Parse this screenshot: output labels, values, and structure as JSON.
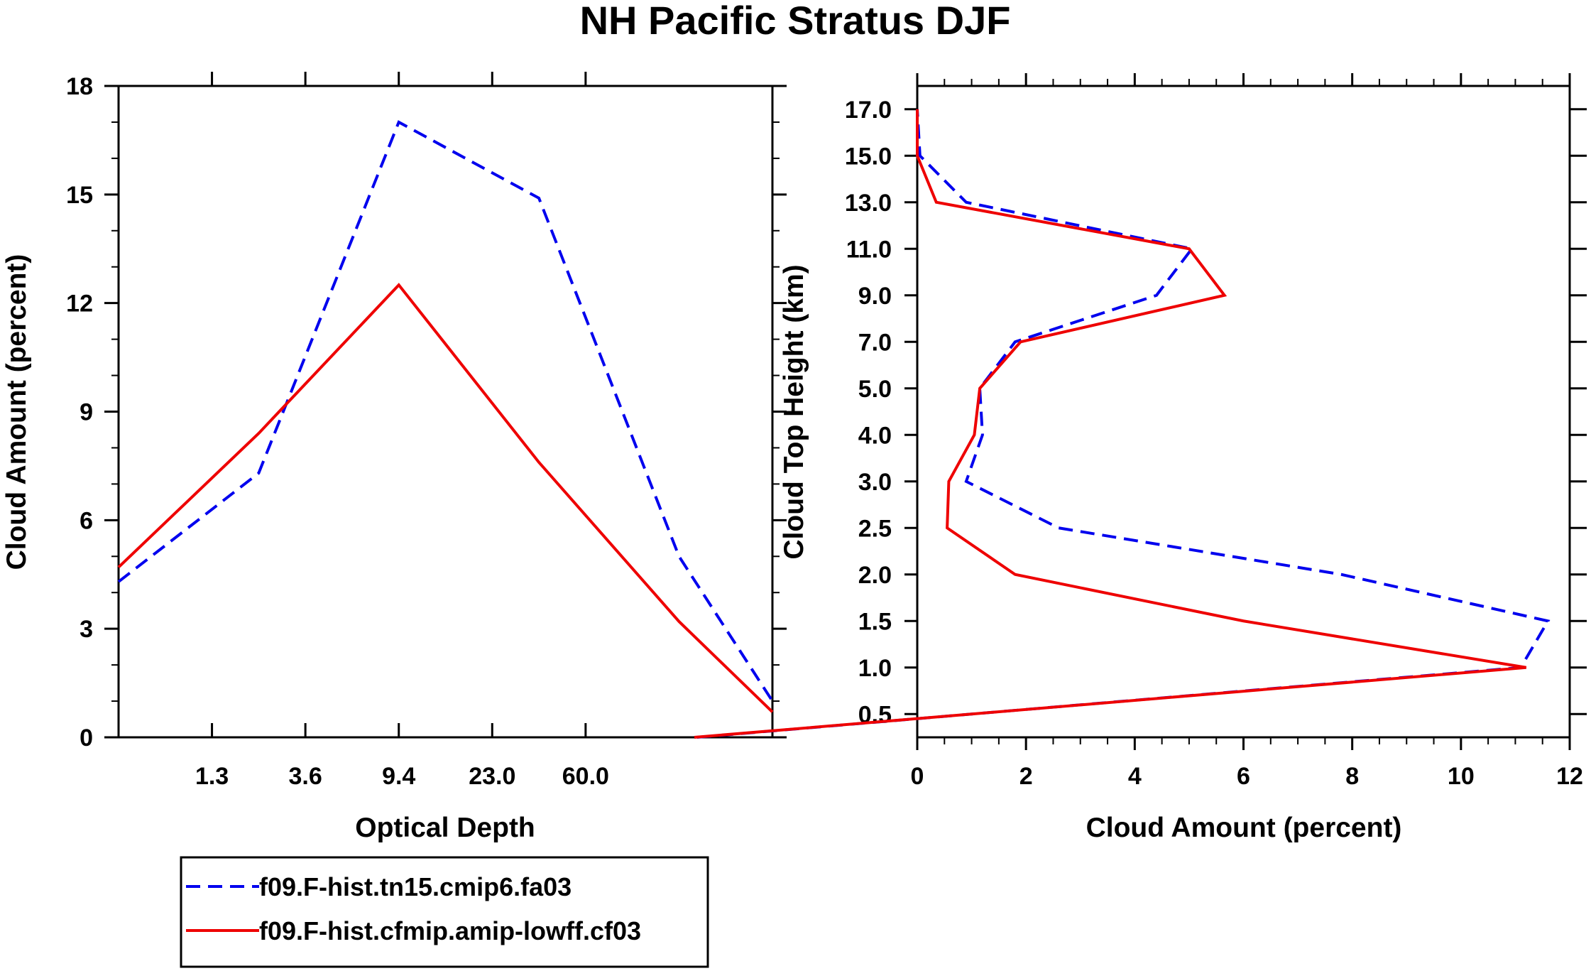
{
  "title": "NH Pacific Stratus DJF",
  "colors": {
    "series1": "#0000ee",
    "series2": "#ee0000"
  },
  "legend": {
    "items": [
      {
        "label": "f09.F-hist.tn15.cmip6.fa03",
        "color": "#0000ee",
        "style": "dashed"
      },
      {
        "label": "f09.F-hist.cfmip.amip-lowff.cf03",
        "color": "#ee0000",
        "style": "solid"
      }
    ]
  },
  "chart_data": [
    {
      "type": "line",
      "xlabel": "Optical Depth",
      "ylabel": "Cloud Amount (percent)",
      "x_tick_labels": [
        "1.3",
        "3.6",
        "9.4",
        "23.0",
        "60.0"
      ],
      "y_ticks": [
        0,
        3,
        6,
        9,
        12,
        15,
        18
      ],
      "ylim": [
        0,
        18
      ],
      "x_bins": 7,
      "x_bin_index": [
        0,
        2,
        4,
        6,
        8,
        10,
        12
      ],
      "series": [
        {
          "name": "f09.F-hist.tn15.cmip6.fa03",
          "style": "dashed",
          "values": [
            4.3,
            7.3,
            17.0,
            14.9,
            5.0,
            1.0
          ]
        },
        {
          "name": "f09.F-hist.cfmip.amip-lowff.cf03",
          "style": "solid",
          "values": [
            4.7,
            8.4,
            12.5,
            7.6,
            3.2,
            0.7
          ]
        }
      ],
      "grid": false
    },
    {
      "type": "line",
      "xlabel": "Cloud Amount (percent)",
      "ylabel": "Cloud Top Height (km)",
      "x_ticks": [
        0,
        2,
        4,
        6,
        8,
        10,
        12
      ],
      "xlim": [
        0,
        12
      ],
      "y_tick_labels": [
        "0.5",
        "1.0",
        "1.5",
        "2.0",
        "2.5",
        "3.0",
        "4.0",
        "5.0",
        "7.0",
        "9.0",
        "11.0",
        "13.0",
        "15.0",
        "17.0"
      ],
      "y_levels": 14,
      "series": [
        {
          "name": "f09.F-hist.tn15.cmip6.fa03",
          "style": "dashed",
          "values": [
            1.0,
            11.1,
            11.6,
            7.8,
            2.6,
            0.9,
            1.2,
            1.15,
            1.8,
            4.4,
            5.05,
            0.9,
            0.05,
            0.0
          ]
        },
        {
          "name": "f09.F-hist.cfmip.amip-lowff.cf03",
          "style": "solid",
          "values": [
            1.0,
            11.2,
            6.0,
            1.8,
            0.55,
            0.58,
            1.05,
            1.15,
            1.9,
            5.65,
            5.0,
            0.35,
            0.0,
            0.0
          ]
        }
      ],
      "grid": false
    }
  ]
}
